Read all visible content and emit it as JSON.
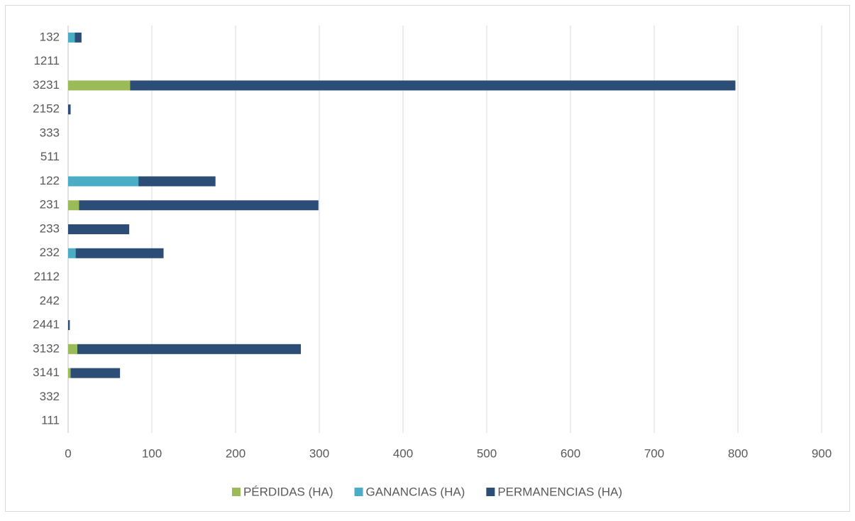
{
  "chart_data": {
    "type": "stacked-barh",
    "categories": [
      "132",
      "1211",
      "3231",
      "2152",
      "333",
      "511",
      "122",
      "231",
      "233",
      "232",
      "2112",
      "242",
      "2441",
      "3132",
      "3141",
      "332",
      "111"
    ],
    "series": [
      {
        "name": "PÉRDIDAS (HA)",
        "color": "#9bbb59",
        "values": [
          0,
          0,
          74,
          0,
          0,
          0,
          0,
          13,
          0,
          0,
          0,
          0,
          0,
          11,
          3,
          0,
          0
        ]
      },
      {
        "name": "GANANCIAS (HA)",
        "color": "#4bacc6",
        "values": [
          8,
          0,
          0,
          0,
          0,
          0,
          84,
          0,
          0,
          9,
          0,
          0,
          0,
          0,
          0,
          0,
          0
        ]
      },
      {
        "name": "PERMANENCIAS (HA)",
        "color": "#2c4d75",
        "values": [
          8,
          0,
          723,
          3,
          0,
          0,
          92,
          286,
          73,
          105,
          0,
          0,
          2,
          267,
          59,
          0,
          0
        ]
      }
    ],
    "xlim": [
      0,
      900
    ],
    "xticks": [
      0,
      100,
      200,
      300,
      400,
      500,
      600,
      700,
      800,
      900
    ],
    "grid": true,
    "legend": "bottom"
  }
}
